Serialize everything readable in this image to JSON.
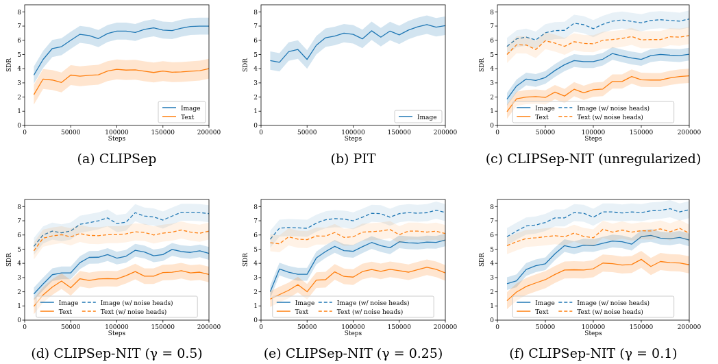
{
  "chart_data": [
    {
      "type": "line",
      "title": "(a) CLIPSep",
      "xlabel": "Steps",
      "ylabel": "SDR",
      "x": [
        10000,
        20000,
        30000,
        40000,
        50000,
        60000,
        70000,
        80000,
        90000,
        100000,
        110000,
        120000,
        130000,
        140000,
        150000,
        160000,
        170000,
        180000,
        190000,
        200000
      ],
      "xlim": [
        0,
        200000
      ],
      "xticks": [
        0,
        50000,
        100000,
        150000,
        200000
      ],
      "ylim": [
        0,
        8.5
      ],
      "yticks": [
        0,
        1,
        2,
        3,
        4,
        5,
        6,
        7,
        8
      ],
      "legend": "bottom right",
      "series": [
        {
          "name": "Image",
          "color": "#1f77b4",
          "line_style": "solid",
          "values": [
            3.55,
            4.65,
            5.42,
            5.55,
            6.0,
            6.42,
            6.33,
            6.12,
            6.48,
            6.65,
            6.65,
            6.55,
            6.77,
            6.88,
            6.72,
            6.68,
            6.85,
            6.97,
            7.0,
            7.0
          ],
          "lower": [
            2.95,
            4.05,
            4.82,
            4.95,
            5.4,
            5.82,
            5.73,
            5.52,
            5.88,
            6.05,
            6.05,
            5.95,
            6.17,
            6.28,
            6.12,
            6.08,
            6.25,
            6.37,
            6.4,
            6.4
          ],
          "upper": [
            4.15,
            5.25,
            6.02,
            6.15,
            6.6,
            7.02,
            6.93,
            6.72,
            7.08,
            7.25,
            7.25,
            7.15,
            7.37,
            7.48,
            7.32,
            7.28,
            7.45,
            7.57,
            7.6,
            7.6
          ]
        },
        {
          "name": "Text",
          "color": "#ff7f0e",
          "line_style": "solid",
          "values": [
            2.17,
            3.27,
            3.2,
            3.03,
            3.55,
            3.47,
            3.53,
            3.57,
            3.83,
            3.95,
            3.9,
            3.92,
            3.82,
            3.73,
            3.83,
            3.75,
            3.77,
            3.82,
            3.86,
            4.0
          ],
          "lower": [
            1.47,
            2.57,
            2.5,
            2.33,
            2.85,
            2.77,
            2.83,
            2.87,
            3.13,
            3.25,
            3.2,
            3.22,
            3.12,
            3.03,
            3.13,
            3.05,
            3.07,
            3.12,
            3.16,
            3.3
          ],
          "upper": [
            2.87,
            3.97,
            3.9,
            3.73,
            4.25,
            4.17,
            4.23,
            4.27,
            4.53,
            4.65,
            4.6,
            4.62,
            4.52,
            4.43,
            4.53,
            4.45,
            4.47,
            4.52,
            4.56,
            4.7
          ]
        }
      ]
    },
    {
      "type": "line",
      "title": "(b) PIT",
      "xlabel": "Steps",
      "ylabel": "SDR",
      "x": [
        10000,
        20000,
        30000,
        40000,
        50000,
        60000,
        70000,
        80000,
        90000,
        100000,
        110000,
        120000,
        130000,
        140000,
        150000,
        160000,
        170000,
        180000,
        190000,
        200000
      ],
      "xlim": [
        0,
        200000
      ],
      "xticks": [
        0,
        50000,
        100000,
        150000,
        200000
      ],
      "ylim": [
        0,
        8.5
      ],
      "yticks": [
        0,
        1,
        2,
        3,
        4,
        5,
        6,
        7,
        8
      ],
      "legend": "bottom right",
      "series": [
        {
          "name": "Image",
          "color": "#1f77b4",
          "line_style": "solid",
          "values": [
            4.57,
            4.45,
            5.2,
            5.35,
            4.65,
            5.65,
            6.18,
            6.3,
            6.5,
            6.42,
            6.1,
            6.67,
            6.22,
            6.65,
            6.38,
            6.72,
            6.95,
            7.1,
            6.92,
            7.03
          ],
          "lower": [
            3.92,
            3.8,
            4.55,
            4.7,
            4.0,
            5.0,
            5.53,
            5.65,
            5.85,
            5.77,
            5.45,
            6.02,
            5.57,
            6.0,
            5.73,
            6.07,
            6.3,
            6.45,
            6.27,
            6.38
          ],
          "upper": [
            5.22,
            5.1,
            5.85,
            6.0,
            5.3,
            6.3,
            6.83,
            6.95,
            7.15,
            7.07,
            6.75,
            7.32,
            6.87,
            7.3,
            7.03,
            7.37,
            7.6,
            7.75,
            7.57,
            7.68
          ]
        }
      ]
    },
    {
      "type": "line",
      "title": "(c) CLIPSep-NIT (unregularized)",
      "xlabel": "Steps",
      "ylabel": "SDR",
      "x": [
        10000,
        20000,
        30000,
        40000,
        50000,
        60000,
        70000,
        80000,
        90000,
        100000,
        110000,
        120000,
        130000,
        140000,
        150000,
        160000,
        170000,
        180000,
        190000,
        200000
      ],
      "xlim": [
        0,
        200000
      ],
      "xticks": [
        0,
        50000,
        100000,
        150000,
        200000
      ],
      "ylim": [
        0,
        8.5
      ],
      "yticks": [
        0,
        1,
        2,
        3,
        4,
        5,
        6,
        7,
        8
      ],
      "legend": "bottom",
      "series": [
        {
          "name": "Image",
          "color": "#1f77b4",
          "line_style": "solid",
          "values": [
            1.85,
            2.78,
            3.27,
            3.17,
            3.38,
            3.87,
            4.28,
            4.57,
            4.5,
            4.5,
            4.67,
            5.07,
            4.9,
            4.75,
            4.65,
            4.92,
            5.0,
            4.95,
            4.92,
            5.02
          ],
          "lower": [
            1.4,
            2.33,
            2.82,
            2.72,
            2.93,
            3.42,
            3.83,
            4.12,
            4.05,
            4.05,
            4.22,
            4.62,
            4.45,
            4.3,
            4.2,
            4.47,
            4.55,
            4.5,
            4.47,
            4.57
          ],
          "upper": [
            2.3,
            3.23,
            3.72,
            3.62,
            3.83,
            4.32,
            4.73,
            5.02,
            4.95,
            4.95,
            5.12,
            5.52,
            5.35,
            5.2,
            5.1,
            5.37,
            5.45,
            5.4,
            5.37,
            5.47
          ]
        },
        {
          "name": "Text",
          "color": "#ff7f0e",
          "line_style": "solid",
          "values": [
            0.97,
            1.88,
            2.0,
            2.03,
            1.97,
            2.35,
            2.07,
            2.55,
            2.3,
            2.52,
            2.57,
            3.1,
            3.1,
            3.45,
            3.22,
            3.2,
            3.2,
            3.35,
            3.45,
            3.5
          ],
          "lower": [
            0.47,
            1.38,
            1.5,
            1.53,
            1.47,
            1.85,
            1.57,
            2.05,
            1.8,
            2.02,
            2.07,
            2.6,
            2.6,
            2.95,
            2.72,
            2.7,
            2.7,
            2.85,
            2.95,
            3.0
          ],
          "upper": [
            1.47,
            2.38,
            2.5,
            2.53,
            2.47,
            2.85,
            2.57,
            3.05,
            2.8,
            3.02,
            3.07,
            3.6,
            3.6,
            3.95,
            3.72,
            3.7,
            3.7,
            3.85,
            3.95,
            4.0
          ]
        },
        {
          "name": "Image (w/ noise heads)",
          "color": "#1f77b4",
          "line_style": "dashed",
          "values": [
            5.57,
            6.1,
            6.22,
            6.02,
            6.53,
            6.68,
            6.7,
            7.2,
            7.1,
            6.82,
            7.13,
            7.35,
            7.43,
            7.33,
            7.23,
            7.4,
            7.45,
            7.4,
            7.35,
            7.5
          ],
          "lower": [
            4.97,
            5.5,
            5.62,
            5.42,
            5.93,
            6.08,
            6.1,
            6.6,
            6.5,
            6.22,
            6.53,
            6.75,
            6.83,
            6.73,
            6.63,
            6.8,
            6.85,
            6.8,
            6.75,
            6.9
          ],
          "upper": [
            6.17,
            6.7,
            6.82,
            6.62,
            7.13,
            7.28,
            7.3,
            7.8,
            7.7,
            7.42,
            7.73,
            7.95,
            8.03,
            7.93,
            7.83,
            8.0,
            8.05,
            8.0,
            7.95,
            8.1
          ]
        },
        {
          "name": "Text (w/ noise heads)",
          "color": "#ff7f0e",
          "line_style": "dashed",
          "values": [
            5.0,
            5.68,
            5.67,
            5.35,
            5.97,
            5.8,
            5.57,
            5.9,
            5.78,
            5.75,
            6.0,
            6.05,
            6.13,
            6.27,
            6.03,
            6.05,
            6.05,
            6.25,
            6.22,
            6.33
          ],
          "lower": [
            4.4,
            5.08,
            5.07,
            4.75,
            5.37,
            5.2,
            4.97,
            5.3,
            5.18,
            5.15,
            5.4,
            5.45,
            5.53,
            5.67,
            5.43,
            5.45,
            5.45,
            5.65,
            5.62,
            5.73
          ],
          "upper": [
            5.6,
            6.28,
            6.27,
            5.95,
            6.57,
            6.4,
            6.17,
            6.5,
            6.38,
            6.35,
            6.6,
            6.65,
            6.73,
            6.87,
            6.63,
            6.65,
            6.65,
            6.85,
            6.82,
            6.93
          ]
        }
      ]
    },
    {
      "type": "line",
      "title": "(d) CLIPSep-NIT (γ = 0.5)",
      "xlabel": "Steps",
      "ylabel": "SDR",
      "x": [
        10000,
        20000,
        30000,
        40000,
        50000,
        60000,
        70000,
        80000,
        90000,
        100000,
        110000,
        120000,
        130000,
        140000,
        150000,
        160000,
        170000,
        180000,
        190000,
        200000
      ],
      "xlim": [
        0,
        200000
      ],
      "xticks": [
        0,
        50000,
        100000,
        150000,
        200000
      ],
      "ylim": [
        0,
        8.5
      ],
      "yticks": [
        0,
        1,
        2,
        3,
        4,
        5,
        6,
        7,
        8
      ],
      "legend": "bottom",
      "series": [
        {
          "name": "Image",
          "color": "#1f77b4",
          "line_style": "solid",
          "values": [
            1.85,
            2.55,
            3.2,
            3.33,
            3.33,
            4.05,
            4.42,
            4.43,
            4.62,
            4.37,
            4.5,
            4.92,
            4.8,
            4.53,
            4.62,
            4.98,
            4.83,
            4.77,
            4.88,
            4.7
          ],
          "lower": [
            1.4,
            2.1,
            2.75,
            2.88,
            2.88,
            3.6,
            3.97,
            3.98,
            4.17,
            3.92,
            4.05,
            4.47,
            4.35,
            4.08,
            4.17,
            4.53,
            4.38,
            4.32,
            4.43,
            4.25
          ],
          "upper": [
            2.3,
            3.0,
            3.65,
            3.78,
            3.78,
            4.5,
            4.87,
            4.88,
            5.07,
            4.82,
            4.95,
            5.37,
            5.25,
            4.98,
            5.07,
            5.43,
            5.28,
            5.22,
            5.33,
            5.15
          ]
        },
        {
          "name": "Text",
          "color": "#ff7f0e",
          "line_style": "solid",
          "values": [
            0.97,
            1.78,
            2.33,
            2.75,
            2.28,
            2.92,
            2.8,
            2.9,
            2.93,
            2.9,
            3.13,
            3.42,
            3.1,
            3.1,
            3.35,
            3.37,
            3.48,
            3.33,
            3.38,
            3.22
          ],
          "lower": [
            0.42,
            1.23,
            1.78,
            2.2,
            1.73,
            2.37,
            2.25,
            2.35,
            2.38,
            2.35,
            2.58,
            2.87,
            2.55,
            2.55,
            2.8,
            2.82,
            2.93,
            2.78,
            2.83,
            2.67
          ],
          "upper": [
            1.52,
            2.33,
            2.88,
            3.3,
            2.83,
            3.47,
            3.35,
            3.45,
            3.48,
            3.45,
            3.68,
            3.97,
            3.65,
            3.65,
            3.9,
            3.92,
            4.03,
            3.88,
            3.93,
            3.77
          ]
        },
        {
          "name": "Image (w/ noise heads)",
          "color": "#1f77b4",
          "line_style": "dashed",
          "values": [
            5.2,
            6.0,
            6.27,
            6.15,
            6.28,
            6.75,
            6.87,
            7.0,
            7.2,
            6.8,
            6.9,
            7.57,
            7.33,
            7.27,
            7.05,
            7.33,
            7.6,
            7.6,
            7.58,
            7.5
          ],
          "lower": [
            4.6,
            5.4,
            5.67,
            5.55,
            5.68,
            6.15,
            6.27,
            6.4,
            6.6,
            6.2,
            6.3,
            6.97,
            6.73,
            6.67,
            6.45,
            6.73,
            7.0,
            7.0,
            6.98,
            6.9
          ],
          "upper": [
            5.8,
            6.6,
            6.87,
            6.75,
            6.88,
            7.35,
            7.47,
            7.6,
            7.8,
            7.4,
            7.5,
            8.17,
            7.93,
            7.87,
            7.65,
            7.93,
            8.2,
            8.2,
            8.18,
            8.1
          ]
        },
        {
          "name": "Text (w/ noise heads)",
          "color": "#ff7f0e",
          "line_style": "dashed",
          "values": [
            4.88,
            5.77,
            5.93,
            6.02,
            5.87,
            6.1,
            5.97,
            5.95,
            6.02,
            6.02,
            6.08,
            6.22,
            6.18,
            6.0,
            6.13,
            6.2,
            6.35,
            6.2,
            6.12,
            6.27
          ],
          "lower": [
            4.28,
            5.17,
            5.33,
            5.42,
            5.27,
            5.5,
            5.37,
            5.35,
            5.42,
            5.42,
            5.48,
            5.62,
            5.58,
            5.4,
            5.53,
            5.6,
            5.75,
            5.6,
            5.52,
            5.67
          ],
          "upper": [
            5.48,
            6.37,
            6.53,
            6.62,
            6.47,
            6.7,
            6.57,
            6.55,
            6.62,
            6.62,
            6.68,
            6.82,
            6.78,
            6.6,
            6.73,
            6.8,
            6.95,
            6.8,
            6.72,
            6.87
          ]
        }
      ]
    },
    {
      "type": "line",
      "title": "(e) CLIPSep-NIT (γ = 0.25)",
      "xlabel": "Steps",
      "ylabel": "SDR",
      "x": [
        10000,
        20000,
        30000,
        40000,
        50000,
        60000,
        70000,
        80000,
        90000,
        100000,
        110000,
        120000,
        130000,
        140000,
        150000,
        160000,
        170000,
        180000,
        190000,
        200000
      ],
      "xlim": [
        0,
        200000
      ],
      "xticks": [
        0,
        50000,
        100000,
        150000,
        200000
      ],
      "ylim": [
        0,
        8.5
      ],
      "yticks": [
        0,
        1,
        2,
        3,
        4,
        5,
        6,
        7,
        8
      ],
      "legend": "bottom",
      "series": [
        {
          "name": "Image",
          "color": "#1f77b4",
          "line_style": "solid",
          "values": [
            2.0,
            3.6,
            3.37,
            3.23,
            3.23,
            4.38,
            4.83,
            5.2,
            4.9,
            4.85,
            5.17,
            5.47,
            5.25,
            5.1,
            5.52,
            5.45,
            5.42,
            5.5,
            5.48,
            5.65
          ],
          "lower": [
            1.55,
            3.15,
            2.92,
            2.78,
            2.78,
            3.93,
            4.38,
            4.75,
            4.45,
            4.4,
            4.72,
            5.02,
            4.8,
            4.65,
            5.07,
            5.0,
            4.97,
            5.05,
            5.03,
            5.2
          ],
          "upper": [
            2.45,
            4.05,
            3.82,
            3.68,
            3.68,
            4.83,
            5.28,
            5.65,
            5.35,
            5.3,
            5.62,
            5.92,
            5.7,
            5.55,
            5.97,
            5.9,
            5.87,
            5.95,
            5.93,
            6.1
          ]
        },
        {
          "name": "Text",
          "color": "#ff7f0e",
          "line_style": "solid",
          "values": [
            1.48,
            1.8,
            2.1,
            2.5,
            2.0,
            2.82,
            2.85,
            3.4,
            3.08,
            3.03,
            3.42,
            3.57,
            3.43,
            3.58,
            3.48,
            3.38,
            3.55,
            3.72,
            3.58,
            3.33
          ],
          "lower": [
            0.93,
            1.25,
            1.55,
            1.95,
            1.45,
            2.27,
            2.3,
            2.85,
            2.53,
            2.48,
            2.87,
            3.02,
            2.88,
            3.03,
            2.93,
            2.83,
            3.0,
            3.17,
            3.03,
            2.78
          ],
          "upper": [
            2.03,
            2.35,
            2.65,
            3.05,
            2.55,
            3.37,
            3.4,
            3.95,
            3.63,
            3.58,
            3.97,
            4.12,
            3.98,
            4.13,
            4.03,
            3.93,
            4.1,
            4.27,
            4.13,
            3.88
          ]
        },
        {
          "name": "Image (w/ noise heads)",
          "color": "#1f77b4",
          "line_style": "dashed",
          "values": [
            5.7,
            6.48,
            6.52,
            6.5,
            6.47,
            6.83,
            7.07,
            7.15,
            7.12,
            7.0,
            7.25,
            7.53,
            7.5,
            7.25,
            7.5,
            7.58,
            7.53,
            7.57,
            7.75,
            7.58
          ],
          "lower": [
            5.1,
            5.88,
            5.92,
            5.9,
            5.87,
            6.23,
            6.47,
            6.55,
            6.52,
            6.4,
            6.65,
            6.93,
            6.9,
            6.65,
            6.9,
            6.98,
            6.93,
            6.97,
            7.15,
            6.98
          ],
          "upper": [
            6.3,
            7.08,
            7.12,
            7.1,
            7.07,
            7.43,
            7.67,
            7.75,
            7.72,
            7.6,
            7.85,
            8.13,
            8.1,
            7.85,
            8.1,
            8.18,
            8.13,
            8.17,
            8.35,
            8.18
          ]
        },
        {
          "name": "Text (w/ noise heads)",
          "color": "#ff7f0e",
          "line_style": "dashed",
          "values": [
            5.45,
            5.38,
            5.87,
            5.7,
            5.67,
            5.93,
            5.92,
            6.17,
            5.83,
            5.87,
            6.2,
            6.23,
            6.28,
            6.38,
            6.02,
            6.27,
            6.27,
            6.2,
            6.27,
            6.1
          ],
          "lower": [
            4.85,
            4.78,
            5.27,
            5.1,
            5.07,
            5.33,
            5.32,
            5.57,
            5.23,
            5.27,
            5.6,
            5.63,
            5.68,
            5.78,
            5.42,
            5.67,
            5.67,
            5.6,
            5.67,
            5.5
          ],
          "upper": [
            6.05,
            5.98,
            6.47,
            6.3,
            6.27,
            6.53,
            6.52,
            6.77,
            6.43,
            6.47,
            6.8,
            6.83,
            6.88,
            6.98,
            6.62,
            6.87,
            6.87,
            6.8,
            6.87,
            6.7
          ]
        }
      ]
    },
    {
      "type": "line",
      "title": "(f) CLIPSep-NIT (γ = 0.1)",
      "xlabel": "Steps",
      "ylabel": "SDR",
      "x": [
        10000,
        20000,
        30000,
        40000,
        50000,
        60000,
        70000,
        80000,
        90000,
        100000,
        110000,
        120000,
        130000,
        140000,
        150000,
        160000,
        170000,
        180000,
        190000,
        200000
      ],
      "xlim": [
        0,
        200000
      ],
      "xticks": [
        0,
        50000,
        100000,
        150000,
        200000
      ],
      "ylim": [
        0,
        8.5
      ],
      "yticks": [
        0,
        1,
        2,
        3,
        4,
        5,
        6,
        7,
        8
      ],
      "legend": "bottom",
      "series": [
        {
          "name": "Image",
          "color": "#1f77b4",
          "line_style": "solid",
          "values": [
            2.57,
            2.77,
            3.57,
            3.83,
            3.97,
            4.67,
            5.25,
            5.1,
            5.28,
            5.25,
            5.42,
            5.57,
            5.52,
            5.35,
            5.88,
            5.97,
            5.78,
            5.73,
            5.83,
            5.65
          ],
          "lower": [
            2.12,
            2.32,
            3.12,
            3.38,
            3.52,
            4.22,
            4.8,
            4.65,
            4.83,
            4.8,
            4.97,
            5.12,
            5.07,
            4.9,
            5.43,
            5.52,
            5.33,
            5.28,
            5.38,
            5.2
          ],
          "upper": [
            3.02,
            3.22,
            4.02,
            4.28,
            4.42,
            5.12,
            5.7,
            5.55,
            5.73,
            5.7,
            5.87,
            6.02,
            5.97,
            5.8,
            6.33,
            6.42,
            6.23,
            6.18,
            6.28,
            6.1
          ]
        },
        {
          "name": "Text",
          "color": "#ff7f0e",
          "line_style": "solid",
          "values": [
            1.37,
            1.98,
            2.37,
            2.62,
            2.85,
            3.22,
            3.53,
            3.55,
            3.53,
            3.62,
            4.02,
            3.98,
            3.88,
            3.92,
            4.28,
            3.78,
            4.13,
            4.05,
            4.03,
            3.9
          ],
          "lower": [
            0.77,
            1.38,
            1.77,
            2.02,
            2.25,
            2.62,
            2.93,
            2.95,
            2.93,
            3.02,
            3.42,
            3.38,
            3.28,
            3.32,
            3.68,
            3.18,
            3.53,
            3.45,
            3.43,
            3.3
          ],
          "upper": [
            1.97,
            2.58,
            2.97,
            3.22,
            3.45,
            3.82,
            4.13,
            4.15,
            4.13,
            4.22,
            4.62,
            4.58,
            4.48,
            4.52,
            4.88,
            4.38,
            4.73,
            4.65,
            4.63,
            4.5
          ]
        },
        {
          "name": "Image (w/ noise heads)",
          "color": "#1f77b4",
          "line_style": "dashed",
          "values": [
            5.88,
            6.27,
            6.63,
            6.7,
            6.88,
            7.2,
            7.2,
            7.58,
            7.53,
            7.25,
            7.62,
            7.62,
            7.55,
            7.62,
            7.57,
            7.7,
            7.73,
            7.85,
            7.62,
            7.78
          ],
          "lower": [
            5.28,
            5.67,
            6.03,
            6.1,
            6.28,
            6.6,
            6.6,
            6.98,
            6.93,
            6.65,
            7.02,
            7.02,
            6.95,
            7.02,
            6.97,
            7.1,
            7.13,
            7.25,
            7.02,
            7.18
          ],
          "upper": [
            6.48,
            6.87,
            7.23,
            7.3,
            7.48,
            7.8,
            7.8,
            8.18,
            8.13,
            7.85,
            8.22,
            8.22,
            8.15,
            8.22,
            8.17,
            8.3,
            8.33,
            8.45,
            8.22,
            8.38
          ]
        },
        {
          "name": "Text (w/ noise heads)",
          "color": "#ff7f0e",
          "line_style": "dashed",
          "values": [
            5.25,
            5.52,
            5.75,
            5.8,
            5.87,
            5.95,
            5.87,
            6.13,
            5.9,
            5.8,
            6.4,
            6.2,
            6.35,
            6.2,
            6.3,
            6.28,
            6.43,
            6.22,
            6.47,
            6.12
          ],
          "lower": [
            4.65,
            4.92,
            5.15,
            5.2,
            5.27,
            5.35,
            5.27,
            5.53,
            5.3,
            5.2,
            5.8,
            5.6,
            5.75,
            5.6,
            5.7,
            5.68,
            5.83,
            5.62,
            5.87,
            5.52
          ],
          "upper": [
            5.85,
            6.12,
            6.35,
            6.4,
            6.47,
            6.55,
            6.47,
            6.73,
            6.5,
            6.4,
            7.0,
            6.8,
            6.95,
            6.8,
            6.9,
            6.88,
            7.03,
            6.82,
            7.07,
            6.72
          ]
        }
      ]
    }
  ]
}
